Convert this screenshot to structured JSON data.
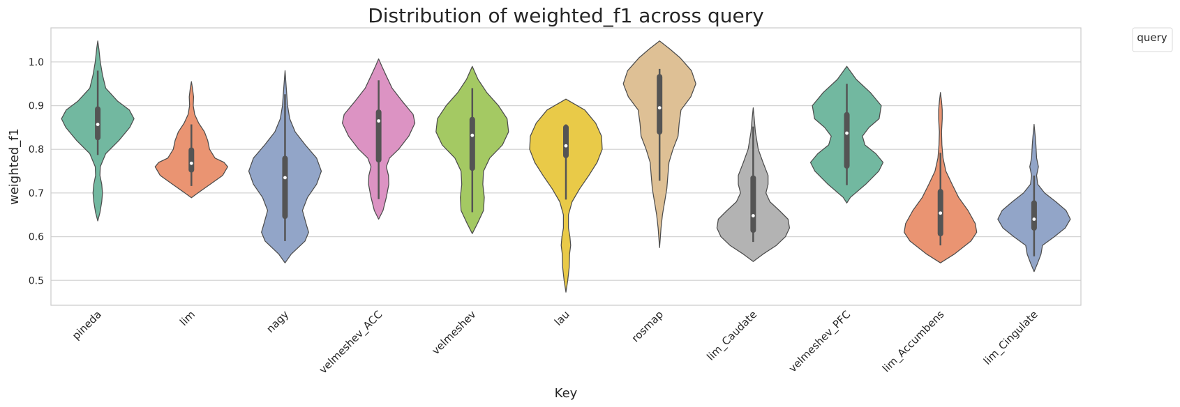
{
  "chart_data": {
    "type": "violin",
    "title": "Distribution of weighted_f1 across query",
    "xlabel": "Key",
    "ylabel": "weighted_f1",
    "ylim": [
      0.443,
      1.078
    ],
    "yticks": [
      0.5,
      0.6,
      0.7,
      0.8,
      0.9,
      1.0
    ],
    "ytick_labels": [
      "0.5",
      "0.6",
      "0.7",
      "0.8",
      "0.9",
      "1.0"
    ],
    "grid": true,
    "legend": {
      "title": "query",
      "position": "upper-right-outside"
    },
    "categories": [
      "pineda",
      "lim",
      "nagy",
      "velmeshev_ACC",
      "velmeshev",
      "lau",
      "rosmap",
      "lim_Caudate",
      "velmeshev_PFC",
      "lim_Accumbens",
      "lim_Cingulate"
    ],
    "colors": [
      "#72b8a0",
      "#ea9472",
      "#92a5c8",
      "#dc93c3",
      "#a4c963",
      "#e9ca48",
      "#dec095",
      "#b3b3b3",
      "#72b8a0",
      "#ea9472",
      "#92a5c8"
    ],
    "violins": [
      {
        "category": "pineda",
        "median": 0.857,
        "q1": 0.827,
        "q3": 0.892,
        "whisker_low": 0.787,
        "whisker_high": 0.98,
        "profile": [
          [
            0.636,
            0
          ],
          [
            0.655,
            0.06
          ],
          [
            0.68,
            0.11
          ],
          [
            0.7,
            0.13
          ],
          [
            0.72,
            0.11
          ],
          [
            0.74,
            0.06
          ],
          [
            0.76,
            0.07
          ],
          [
            0.79,
            0.22
          ],
          [
            0.82,
            0.58
          ],
          [
            0.85,
            0.88
          ],
          [
            0.87,
            1.0
          ],
          [
            0.89,
            0.87
          ],
          [
            0.91,
            0.55
          ],
          [
            0.94,
            0.22
          ],
          [
            0.97,
            0.13
          ],
          [
            1.0,
            0.07
          ],
          [
            1.03,
            0.03
          ],
          [
            1.048,
            0
          ]
        ]
      },
      {
        "category": "lim",
        "median": 0.768,
        "q1": 0.753,
        "q3": 0.798,
        "whisker_low": 0.716,
        "whisker_high": 0.857,
        "profile": [
          [
            0.689,
            0
          ],
          [
            0.7,
            0.18
          ],
          [
            0.72,
            0.52
          ],
          [
            0.74,
            0.86
          ],
          [
            0.76,
            1.0
          ],
          [
            0.77,
            0.9
          ],
          [
            0.78,
            0.65
          ],
          [
            0.8,
            0.5
          ],
          [
            0.82,
            0.45
          ],
          [
            0.84,
            0.36
          ],
          [
            0.86,
            0.2
          ],
          [
            0.88,
            0.09
          ],
          [
            0.9,
            0.05
          ],
          [
            0.92,
            0.06
          ],
          [
            0.94,
            0.03
          ],
          [
            0.955,
            0
          ]
        ]
      },
      {
        "category": "nagy",
        "median": 0.735,
        "q1": 0.647,
        "q3": 0.779,
        "whisker_low": 0.59,
        "whisker_high": 0.926,
        "profile": [
          [
            0.54,
            0
          ],
          [
            0.56,
            0.17
          ],
          [
            0.59,
            0.55
          ],
          [
            0.61,
            0.65
          ],
          [
            0.63,
            0.58
          ],
          [
            0.66,
            0.48
          ],
          [
            0.69,
            0.62
          ],
          [
            0.72,
            0.87
          ],
          [
            0.75,
            1.0
          ],
          [
            0.78,
            0.87
          ],
          [
            0.81,
            0.56
          ],
          [
            0.84,
            0.28
          ],
          [
            0.87,
            0.13
          ],
          [
            0.9,
            0.07
          ],
          [
            0.94,
            0.035
          ],
          [
            0.98,
            0
          ]
        ]
      },
      {
        "category": "velmeshev_ACC",
        "median": 0.865,
        "q1": 0.776,
        "q3": 0.885,
        "whisker_low": 0.686,
        "whisker_high": 0.958,
        "profile": [
          [
            0.64,
            0
          ],
          [
            0.66,
            0.12
          ],
          [
            0.69,
            0.21
          ],
          [
            0.72,
            0.28
          ],
          [
            0.74,
            0.27
          ],
          [
            0.76,
            0.21
          ],
          [
            0.78,
            0.3
          ],
          [
            0.8,
            0.55
          ],
          [
            0.83,
            0.83
          ],
          [
            0.86,
            1.0
          ],
          [
            0.88,
            0.95
          ],
          [
            0.91,
            0.65
          ],
          [
            0.94,
            0.37
          ],
          [
            0.97,
            0.2
          ],
          [
            0.99,
            0.09
          ],
          [
            1.007,
            0
          ]
        ]
      },
      {
        "category": "velmeshev",
        "median": 0.832,
        "q1": 0.757,
        "q3": 0.868,
        "whisker_low": 0.656,
        "whisker_high": 0.94,
        "profile": [
          [
            0.607,
            0
          ],
          [
            0.63,
            0.14
          ],
          [
            0.66,
            0.31
          ],
          [
            0.69,
            0.33
          ],
          [
            0.72,
            0.29
          ],
          [
            0.75,
            0.31
          ],
          [
            0.78,
            0.48
          ],
          [
            0.81,
            0.83
          ],
          [
            0.84,
            1.0
          ],
          [
            0.87,
            0.96
          ],
          [
            0.9,
            0.72
          ],
          [
            0.93,
            0.4
          ],
          [
            0.96,
            0.16
          ],
          [
            0.99,
            0
          ]
        ]
      },
      {
        "category": "lau",
        "median": 0.808,
        "q1": 0.786,
        "q3": 0.85,
        "whisker_low": 0.685,
        "whisker_high": 0.857,
        "profile": [
          [
            0.473,
            0
          ],
          [
            0.5,
            0.05
          ],
          [
            0.53,
            0.09
          ],
          [
            0.56,
            0.1
          ],
          [
            0.58,
            0.13
          ],
          [
            0.6,
            0.11
          ],
          [
            0.62,
            0.07
          ],
          [
            0.65,
            0.07
          ],
          [
            0.68,
            0.17
          ],
          [
            0.71,
            0.38
          ],
          [
            0.74,
            0.63
          ],
          [
            0.77,
            0.86
          ],
          [
            0.8,
            1.0
          ],
          [
            0.83,
            0.98
          ],
          [
            0.86,
            0.82
          ],
          [
            0.89,
            0.52
          ],
          [
            0.915,
            0
          ]
        ]
      },
      {
        "category": "rosmap",
        "median": 0.895,
        "q1": 0.84,
        "q3": 0.966,
        "whisker_low": 0.728,
        "whisker_high": 0.984,
        "profile": [
          [
            0.575,
            0
          ],
          [
            0.62,
            0.04
          ],
          [
            0.65,
            0.08
          ],
          [
            0.68,
            0.14
          ],
          [
            0.71,
            0.2
          ],
          [
            0.74,
            0.23
          ],
          [
            0.77,
            0.26
          ],
          [
            0.8,
            0.37
          ],
          [
            0.83,
            0.51
          ],
          [
            0.86,
            0.54
          ],
          [
            0.89,
            0.59
          ],
          [
            0.92,
            0.86
          ],
          [
            0.95,
            1.0
          ],
          [
            0.98,
            0.88
          ],
          [
            1.01,
            0.56
          ],
          [
            1.03,
            0.28
          ],
          [
            1.048,
            0
          ]
        ]
      },
      {
        "category": "lim_Caudate",
        "median": 0.648,
        "q1": 0.615,
        "q3": 0.734,
        "whisker_low": 0.588,
        "whisker_high": 0.852,
        "profile": [
          [
            0.543,
            0
          ],
          [
            0.56,
            0.27
          ],
          [
            0.58,
            0.64
          ],
          [
            0.6,
            0.89
          ],
          [
            0.62,
            1.0
          ],
          [
            0.64,
            0.96
          ],
          [
            0.66,
            0.72
          ],
          [
            0.68,
            0.46
          ],
          [
            0.7,
            0.35
          ],
          [
            0.72,
            0.41
          ],
          [
            0.74,
            0.41
          ],
          [
            0.77,
            0.27
          ],
          [
            0.8,
            0.14
          ],
          [
            0.84,
            0.06
          ],
          [
            0.87,
            0.03
          ],
          [
            0.895,
            0
          ]
        ]
      },
      {
        "category": "velmeshev_PFC",
        "median": 0.837,
        "q1": 0.762,
        "q3": 0.879,
        "whisker_low": 0.718,
        "whisker_high": 0.95,
        "profile": [
          [
            0.677,
            0
          ],
          [
            0.69,
            0.1
          ],
          [
            0.72,
            0.52
          ],
          [
            0.75,
            0.88
          ],
          [
            0.77,
            1.0
          ],
          [
            0.79,
            0.8
          ],
          [
            0.81,
            0.5
          ],
          [
            0.83,
            0.43
          ],
          [
            0.85,
            0.61
          ],
          [
            0.87,
            0.89
          ],
          [
            0.9,
            0.95
          ],
          [
            0.93,
            0.65
          ],
          [
            0.96,
            0.26
          ],
          [
            0.99,
            0
          ]
        ]
      },
      {
        "category": "lim_Accumbens",
        "median": 0.654,
        "q1": 0.607,
        "q3": 0.703,
        "whisker_low": 0.58,
        "whisker_high": 0.792,
        "profile": [
          [
            0.54,
            0
          ],
          [
            0.56,
            0.38
          ],
          [
            0.59,
            0.84
          ],
          [
            0.61,
            1.0
          ],
          [
            0.63,
            0.96
          ],
          [
            0.66,
            0.76
          ],
          [
            0.69,
            0.5
          ],
          [
            0.72,
            0.32
          ],
          [
            0.75,
            0.15
          ],
          [
            0.78,
            0.07
          ],
          [
            0.81,
            0.04
          ],
          [
            0.84,
            0.03
          ],
          [
            0.87,
            0.05
          ],
          [
            0.89,
            0.05
          ],
          [
            0.91,
            0.03
          ],
          [
            0.93,
            0
          ]
        ]
      },
      {
        "category": "lim_Cingulate",
        "median": 0.64,
        "q1": 0.62,
        "q3": 0.677,
        "whisker_low": 0.555,
        "whisker_high": 0.74,
        "profile": [
          [
            0.52,
            0
          ],
          [
            0.54,
            0.1
          ],
          [
            0.56,
            0.19
          ],
          [
            0.58,
            0.23
          ],
          [
            0.6,
            0.56
          ],
          [
            0.62,
            0.86
          ],
          [
            0.64,
            1.0
          ],
          [
            0.66,
            0.88
          ],
          [
            0.68,
            0.6
          ],
          [
            0.7,
            0.29
          ],
          [
            0.72,
            0.1
          ],
          [
            0.74,
            0.07
          ],
          [
            0.76,
            0.12
          ],
          [
            0.78,
            0.07
          ],
          [
            0.81,
            0.05
          ],
          [
            0.83,
            0.03
          ],
          [
            0.857,
            0
          ]
        ]
      }
    ]
  }
}
